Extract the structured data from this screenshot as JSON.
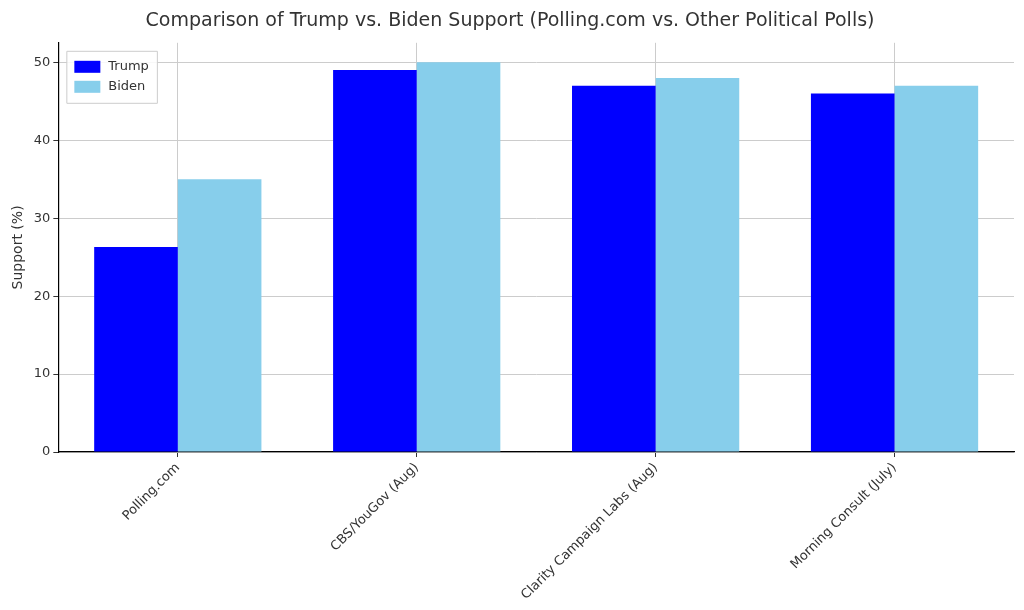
{
  "chart_data": {
    "type": "bar",
    "title": "Comparison of Trump vs. Biden Support (Polling.com vs. Other Political Polls)",
    "y_label": "Support (%)",
    "categories": [
      "Polling.com",
      "CBS/YouGov (Aug)",
      "Clarity Campaign Labs (Aug)",
      "Morning Consult (July)"
    ],
    "series": [
      {
        "name": "Trump",
        "color": "#0000ff",
        "values": [
          26.3,
          49,
          47,
          46
        ]
      },
      {
        "name": "Biden",
        "color": "#87ceeb",
        "values": [
          35,
          50,
          48,
          47
        ]
      }
    ],
    "ylim": [
      0,
      52.5
    ],
    "yticks": [
      0,
      10,
      20,
      30,
      40,
      50
    ],
    "grid": true,
    "legend": "upper left"
  }
}
